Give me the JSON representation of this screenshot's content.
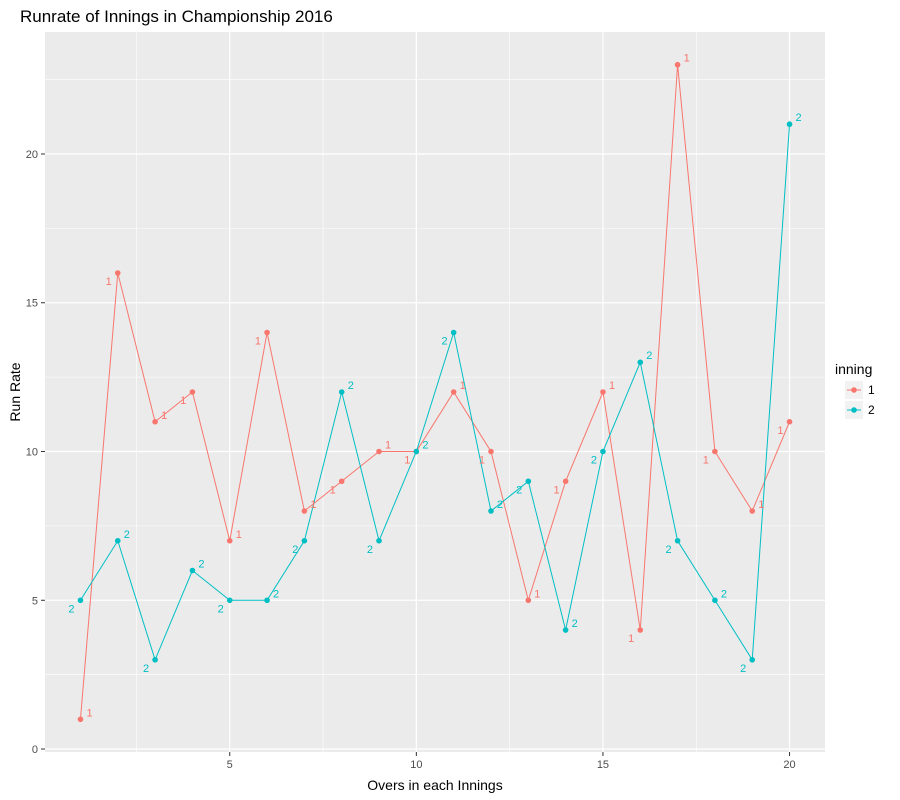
{
  "chart_data": {
    "type": "line",
    "title": "Runrate of Innings in Championship 2016",
    "xlabel": "Overs in each Innings",
    "ylabel": "Run Rate",
    "x": [
      1,
      2,
      3,
      4,
      5,
      6,
      7,
      8,
      9,
      10,
      11,
      12,
      13,
      14,
      15,
      16,
      17,
      18,
      19,
      20
    ],
    "xlim": [
      0.05,
      20.95
    ],
    "ylim": [
      -0.1,
      24.1
    ],
    "x_ticks": [
      5,
      10,
      15,
      20
    ],
    "y_ticks": [
      0,
      5,
      10,
      15,
      20
    ],
    "x_tick_labels": [
      "5",
      "10",
      "15",
      "20"
    ],
    "y_tick_labels": [
      "0",
      "5",
      "10",
      "15",
      "20"
    ],
    "grid": true,
    "legend": {
      "title": "inning",
      "position": "right"
    },
    "series": [
      {
        "name": "1",
        "color": "#F8766D",
        "values": [
          1,
          16,
          11,
          12,
          7,
          14,
          8,
          9,
          10,
          10,
          12,
          10,
          5,
          9,
          12,
          4,
          23,
          10,
          8,
          11
        ],
        "labels": [
          "1",
          "1",
          "1",
          "1",
          "1",
          "1",
          "1",
          "1",
          "1",
          "1",
          "1",
          "1",
          "1",
          "1",
          "1",
          "1",
          "1",
          "1",
          "1",
          "1"
        ]
      },
      {
        "name": "2",
        "color": "#00BFC4",
        "values": [
          5,
          7,
          3,
          6,
          5,
          5,
          7,
          12,
          7,
          10,
          14,
          8,
          9,
          4,
          10,
          13,
          7,
          5,
          3,
          21
        ],
        "labels": [
          "2",
          "2",
          "2",
          "2",
          "2",
          "2",
          "2",
          "2",
          "2",
          "2",
          "2",
          "2",
          "2",
          "2",
          "2",
          "2",
          "2",
          "2",
          "2",
          "2"
        ]
      }
    ]
  }
}
